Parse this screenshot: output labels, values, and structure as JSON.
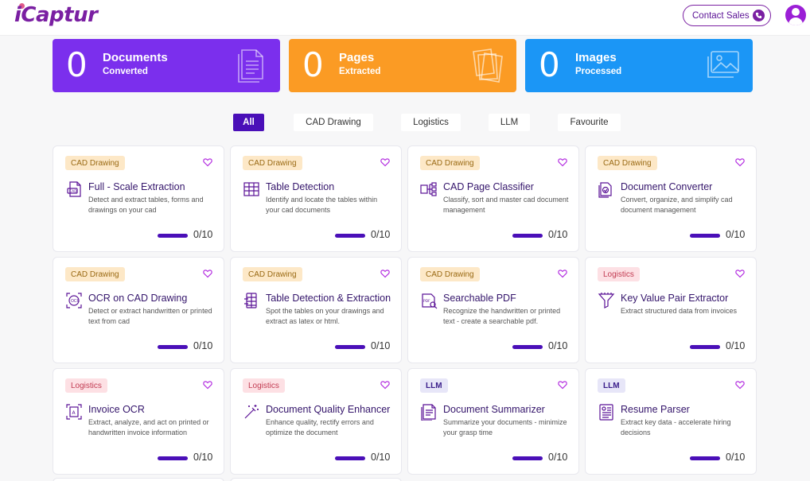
{
  "header": {
    "logo": "iCaptur",
    "contact_label": "Contact Sales",
    "contact_icon": "phone-icon",
    "user_icon": "user-avatar-icon"
  },
  "stats": [
    {
      "value": "0",
      "title": "Documents",
      "subtitle": "Converted",
      "color": "#7b2fed",
      "icon": "document-stack-icon"
    },
    {
      "value": "0",
      "title": "Pages",
      "subtitle": "Extracted",
      "color": "#fb9b24",
      "icon": "pages-icon"
    },
    {
      "value": "0",
      "title": "Images",
      "subtitle": "Processed",
      "color": "#1b96f6",
      "icon": "images-icon"
    }
  ],
  "filters": [
    "All",
    "CAD Drawing",
    "Logistics",
    "LLM",
    "Favourite"
  ],
  "active_filter": "All",
  "cards": [
    {
      "tag": "CAD Drawing",
      "tag_type": "cad",
      "title": "Full - Scale Extraction",
      "desc": "Detect and extract tables, forms and drawings on your cad",
      "count": "0/10",
      "progress": 0,
      "icon": "cad-file-icon"
    },
    {
      "tag": "CAD Drawing",
      "tag_type": "cad",
      "title": "Table Detection",
      "desc": "Identify and locate the tables within your cad documents",
      "count": "0/10",
      "progress": 0,
      "icon": "table-icon"
    },
    {
      "tag": "CAD Drawing",
      "tag_type": "cad",
      "title": "CAD Page Classifier",
      "desc": "Classify, sort and master cad document management",
      "count": "0/10",
      "progress": 0,
      "icon": "classifier-icon"
    },
    {
      "tag": "CAD Drawing",
      "tag_type": "cad",
      "title": "Document Converter",
      "desc": "Convert, organize, and simplify cad document management",
      "count": "0/10",
      "progress": 0,
      "icon": "converter-icon"
    },
    {
      "tag": "CAD Drawing",
      "tag_type": "cad",
      "title": "OCR on CAD Drawing",
      "desc": "Detect or extract handwritten or printed text from cad",
      "count": "0/10",
      "progress": 0,
      "icon": "ocr-icon"
    },
    {
      "tag": "CAD Drawing",
      "tag_type": "cad",
      "title": "Table Detection & Extraction",
      "desc": "Spot the tables on your drawings and extract as latex or html.",
      "count": "0/10",
      "progress": 0,
      "icon": "table-extract-icon"
    },
    {
      "tag": "CAD Drawing",
      "tag_type": "cad",
      "title": "Searchable PDF",
      "desc": "Recognize the handwritten or printed text - create a searchable pdf.",
      "count": "0/10",
      "progress": 0,
      "icon": "searchable-pdf-icon"
    },
    {
      "tag": "Logistics",
      "tag_type": "log",
      "title": "Key Value Pair Extractor",
      "desc": "Extract structured data from invoices",
      "count": "0/10",
      "progress": 0,
      "icon": "funnel-icon"
    },
    {
      "tag": "Logistics",
      "tag_type": "log",
      "title": "Invoice OCR",
      "desc": "Extract, analyze, and act on printed or handwritten invoice information",
      "count": "0/10",
      "progress": 0,
      "icon": "invoice-scan-icon"
    },
    {
      "tag": "Logistics",
      "tag_type": "log",
      "title": "Document Quality Enhancer",
      "desc": "Enhance quality, rectify errors and optimize the document",
      "count": "0/10",
      "progress": 0,
      "icon": "magic-wand-icon"
    },
    {
      "tag": "LLM",
      "tag_type": "llm",
      "title": "Document Summarizer",
      "desc": "Summarize your documents - minimize your grasp time",
      "count": "0/10",
      "progress": 0,
      "icon": "summarizer-icon"
    },
    {
      "tag": "LLM",
      "tag_type": "llm",
      "title": "Resume Parser",
      "desc": "Extract key data - accelerate hiring decisions",
      "count": "0/10",
      "progress": 0,
      "icon": "resume-icon"
    }
  ]
}
